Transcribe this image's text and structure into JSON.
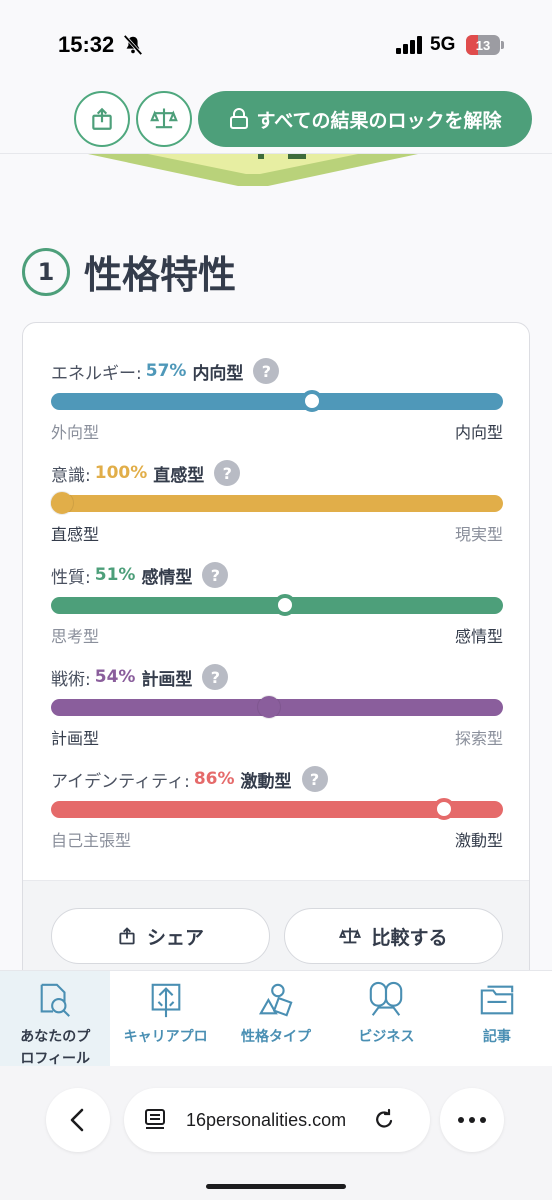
{
  "status": {
    "time": "15:32",
    "network": "5G",
    "battery": "13"
  },
  "header": {
    "unlock_label": "すべての結果のロックを解除"
  },
  "section": {
    "number": "1",
    "title": "性格特性"
  },
  "traits": [
    {
      "name": "エネルギー:",
      "pct": "57%",
      "type": "内向型",
      "left": "外向型",
      "right": "内向型",
      "value": 57,
      "position": 0.577,
      "active_side": "right",
      "color": "#4f98b9"
    },
    {
      "name": "意識:",
      "pct": "100%",
      "type": "直感型",
      "left": "直感型",
      "right": "現実型",
      "value": 100,
      "position": 0.024,
      "active_side": "left",
      "color": "#e1ae49"
    },
    {
      "name": "性質:",
      "pct": "51%",
      "type": "感情型",
      "left": "思考型",
      "right": "感情型",
      "value": 51,
      "position": 0.517,
      "active_side": "right",
      "color": "#4d9f7a"
    },
    {
      "name": "戦術:",
      "pct": "54%",
      "type": "計画型",
      "left": "計画型",
      "right": "探索型",
      "value": 54,
      "position": 0.483,
      "active_side": "left",
      "color": "#8a5e9c"
    },
    {
      "name": "アイデンティティ:",
      "pct": "86%",
      "type": "激動型",
      "left": "自己主張型",
      "right": "激動型",
      "value": 86,
      "position": 0.869,
      "active_side": "right",
      "color": "#e56a6a"
    }
  ],
  "card_actions": {
    "share": "シェア",
    "compare": "比較する"
  },
  "tabs": [
    {
      "line1": "あなたのプ",
      "line2": "ロフィール",
      "icon": "profile-search-icon",
      "active": true
    },
    {
      "line1": "キャリアプロ",
      "line2": "",
      "icon": "career-icon",
      "active": false
    },
    {
      "line1": "性格タイプ",
      "line2": "",
      "icon": "shapes-icon",
      "active": false
    },
    {
      "line1": "ビジネス",
      "line2": "",
      "icon": "business-icon",
      "active": false
    },
    {
      "line1": "記事",
      "line2": "",
      "icon": "folder-icon",
      "active": false
    }
  ],
  "browser": {
    "url": "16personalities.com"
  },
  "colors": {
    "accent": "#4d9f7a",
    "text": "#343c4b",
    "muted": "#8a8f9b",
    "tab": "#4a8fb3"
  }
}
